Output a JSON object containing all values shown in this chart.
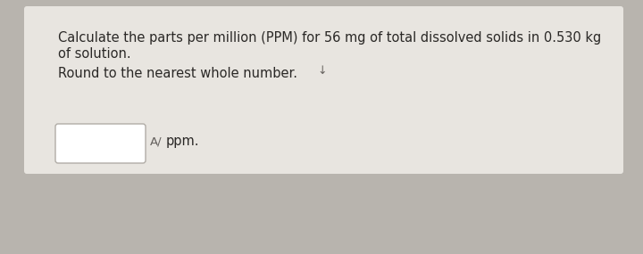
{
  "line1": "Calculate the parts per million (PPM) for 56 mg of total dissolved solids in 0.530 kg",
  "line2": "of solution.",
  "line3": "Round to the nearest whole number.",
  "cursor_char": "↓",
  "ppm_label": "ppm.",
  "font_symbol": "A/",
  "bg_color": "#b8b4ae",
  "card_color": "#e8e5e0",
  "text_color": "#2a2826",
  "symbol_color": "#666260",
  "box_edge_color": "#b0aca6",
  "font_size_main": 10.5,
  "font_size_symbol": 9.5
}
